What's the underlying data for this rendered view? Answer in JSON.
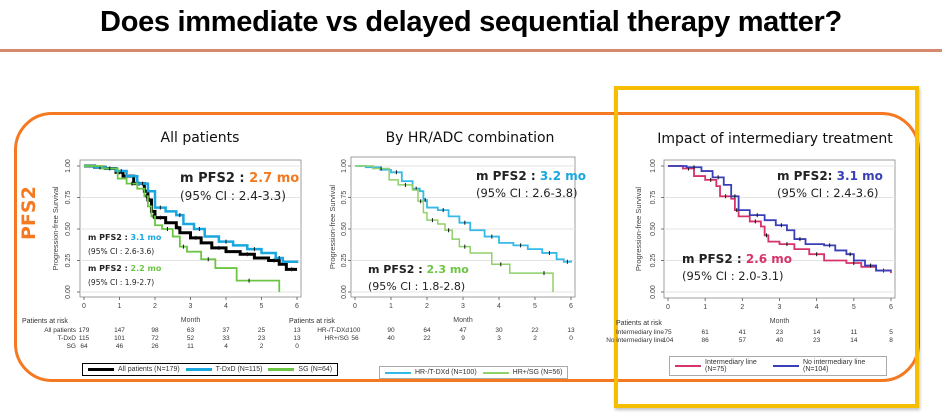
{
  "slide": {
    "title": "Does immediate vs delayed sequential therapy matter?",
    "side_label": "PFS2"
  },
  "colors": {
    "frame_orange": "#f47920",
    "highlight_yellow": "#f6be00",
    "all_patients": "#000000",
    "tdxd": "#1aa7e0",
    "sg": "#6cc644",
    "hr_tdxd": "#35b9e6",
    "hr_sg": "#8fd16a",
    "intermediary": "#d6336c",
    "no_intermediary": "#3a3fb8"
  },
  "chart_data": [
    {
      "type": "line",
      "title": "All patients",
      "xlabel": "Month",
      "ylabel": "Progression-free Survival",
      "xlim": [
        0,
        6
      ],
      "ylim": [
        0,
        1
      ],
      "xticks": [
        "0",
        "1",
        "2",
        "3",
        "4",
        "5",
        "6"
      ],
      "yticks": [
        "0.00",
        "0.25",
        "0.50",
        "0.75",
        "1.00"
      ],
      "grid": true,
      "annotations": [
        {
          "label": "m PFS2 : ",
          "value": "2.7 mo",
          "ci": "(95% CI : 2.4-3.3)",
          "color": "#f47920"
        },
        {
          "label": "m PFS2 : ",
          "value": "3.1 mo",
          "ci": "(95% CI : 2.6-3.6)",
          "color": "#1aa7e0"
        },
        {
          "label": "m PFS2 : ",
          "value": "2.2 mo",
          "ci": "(95% CI : 1.9-2.7)",
          "color": "#6cc644"
        }
      ],
      "series": [
        {
          "name": "All patients (N=179)",
          "color": "#000000",
          "x": [
            0,
            0.3,
            0.6,
            0.9,
            1.1,
            1.4,
            1.7,
            1.8,
            1.9,
            2.0,
            2.3,
            2.6,
            2.7,
            3.0,
            3.3,
            3.6,
            4.0,
            4.4,
            4.8,
            5.2,
            5.5,
            5.7,
            6.0
          ],
          "y": [
            1.0,
            0.99,
            0.98,
            0.95,
            0.92,
            0.86,
            0.8,
            0.73,
            0.64,
            0.59,
            0.55,
            0.51,
            0.47,
            0.43,
            0.39,
            0.35,
            0.32,
            0.3,
            0.27,
            0.25,
            0.22,
            0.18,
            0.18
          ]
        },
        {
          "name": "T-DxD (N=115)",
          "color": "#1aa7e0",
          "x": [
            0,
            0.3,
            0.6,
            0.9,
            1.2,
            1.5,
            1.8,
            2.0,
            2.3,
            2.6,
            2.8,
            3.1,
            3.4,
            3.8,
            4.2,
            4.6,
            5.0,
            5.4,
            5.6,
            6.0
          ],
          "y": [
            1.0,
            0.99,
            0.98,
            0.96,
            0.92,
            0.86,
            0.8,
            0.67,
            0.64,
            0.61,
            0.54,
            0.5,
            0.44,
            0.4,
            0.37,
            0.34,
            0.31,
            0.27,
            0.24,
            0.23
          ]
        },
        {
          "name": "SG (N=64)",
          "color": "#6cc644",
          "x": [
            0,
            0.5,
            0.95,
            1.2,
            1.5,
            1.7,
            1.8,
            1.9,
            2.0,
            2.2,
            2.5,
            2.7,
            2.9,
            3.3,
            3.7,
            4.3,
            5.0,
            5.5
          ],
          "y": [
            1.0,
            0.98,
            0.9,
            0.86,
            0.82,
            0.76,
            0.68,
            0.6,
            0.53,
            0.5,
            0.44,
            0.36,
            0.32,
            0.26,
            0.19,
            0.09,
            0.09,
            0.0
          ]
        }
      ],
      "risk_table": {
        "header": "Patients at risk",
        "rows": [
          {
            "label": "All patients",
            "values": [
              179,
              147,
              98,
              63,
              37,
              25,
              13
            ]
          },
          {
            "label": "T-DxD",
            "values": [
              115,
              101,
              72,
              52,
              33,
              23,
              13
            ]
          },
          {
            "label": "SG",
            "values": [
              64,
              46,
              26,
              11,
              4,
              2,
              0
            ]
          }
        ]
      },
      "legend": [
        "All patients (N=179)",
        "T-DxD (N=115)",
        "SG (N=64)"
      ]
    },
    {
      "type": "line",
      "title": "By HR/ADC combination",
      "xlabel": "Month",
      "ylabel": "Progression-free Survival",
      "xlim": [
        0,
        6
      ],
      "ylim": [
        0,
        1
      ],
      "xticks": [
        "0",
        "1",
        "2",
        "3",
        "4",
        "5",
        "6"
      ],
      "yticks": [
        "0.00",
        "0.25",
        "0.50",
        "0.75",
        "1.00"
      ],
      "grid": true,
      "annotations": [
        {
          "label": "m PFS2 : ",
          "value": "3.2 mo",
          "ci": "(95% CI : 2.6-3.8)",
          "color": "#1aa7e0"
        },
        {
          "label": "m PFS2 : ",
          "value": "2.3 mo",
          "ci": "(95% CI : 1.8-2.8)",
          "color": "#6cc644"
        }
      ],
      "series": [
        {
          "name": "HR-/T-DXd (N=100)",
          "color": "#35b9e6",
          "x": [
            0,
            0.3,
            0.7,
            1.0,
            1.3,
            1.6,
            1.8,
            1.9,
            2.0,
            2.3,
            2.6,
            2.9,
            3.2,
            3.6,
            4.0,
            4.4,
            4.8,
            5.2,
            5.6,
            5.8,
            6.0
          ],
          "y": [
            1.0,
            0.99,
            0.97,
            0.95,
            0.88,
            0.82,
            0.8,
            0.73,
            0.67,
            0.65,
            0.6,
            0.55,
            0.49,
            0.44,
            0.39,
            0.37,
            0.34,
            0.31,
            0.26,
            0.24,
            0.25
          ]
        },
        {
          "name": "HR+/SG (N=56)",
          "color": "#8fd16a",
          "x": [
            0,
            0.5,
            0.95,
            1.2,
            1.6,
            1.75,
            1.9,
            2.0,
            2.3,
            2.5,
            2.7,
            2.9,
            3.2,
            3.8,
            4.3,
            5.0,
            5.5
          ],
          "y": [
            1.0,
            0.98,
            0.89,
            0.85,
            0.81,
            0.72,
            0.63,
            0.57,
            0.54,
            0.49,
            0.42,
            0.36,
            0.31,
            0.22,
            0.15,
            0.15,
            0.0
          ]
        }
      ],
      "risk_table": {
        "header": "Patients at risk",
        "rows": [
          {
            "label": "HR-/T-DXd",
            "values": [
              100,
              90,
              64,
              47,
              30,
              22,
              13
            ]
          },
          {
            "label": "HR+/SG",
            "values": [
              56,
              40,
              22,
              9,
              3,
              2,
              0
            ]
          }
        ]
      },
      "legend": [
        "HR-/T-DXd (N=100)",
        "HR+/SG (N=56)"
      ]
    },
    {
      "type": "line",
      "title": "Impact of intermediary treatment",
      "xlabel": "Month",
      "ylabel": "Progression-free Survival",
      "xlim": [
        0,
        6
      ],
      "ylim": [
        0,
        1
      ],
      "xticks": [
        "0",
        "1",
        "2",
        "3",
        "4",
        "5",
        "6"
      ],
      "yticks": [
        "0.00",
        "0.25",
        "0.50",
        "0.75",
        "1.00"
      ],
      "grid": true,
      "annotations": [
        {
          "label": "m PFS2: ",
          "value": "3.1 mo",
          "ci": "(95% CI : 2.4-3.6)",
          "color": "#3a3fb8"
        },
        {
          "label": "m PFS2 : ",
          "value": "2.6 mo",
          "ci": "(95% CI : 2.0-3.1)",
          "color": "#d6336c"
        }
      ],
      "series": [
        {
          "name": "Intermediary line (N=75)",
          "color": "#d6336c",
          "x": [
            0,
            0.4,
            0.7,
            1.0,
            1.3,
            1.4,
            1.7,
            1.8,
            1.9,
            2.2,
            2.5,
            2.6,
            2.7,
            3.0,
            3.4,
            3.8,
            4.2,
            4.8,
            5.2,
            5.6,
            6.0
          ],
          "y": [
            1.0,
            0.98,
            0.92,
            0.89,
            0.84,
            0.76,
            0.74,
            0.65,
            0.6,
            0.56,
            0.52,
            0.45,
            0.4,
            0.38,
            0.34,
            0.3,
            0.25,
            0.23,
            0.2,
            0.17,
            0.15
          ]
        },
        {
          "name": "No intermediary line (N=104)",
          "color": "#3a3fb8",
          "x": [
            0,
            0.5,
            0.9,
            1.2,
            1.5,
            1.7,
            1.9,
            2.2,
            2.6,
            2.9,
            3.2,
            3.4,
            3.7,
            4.2,
            4.5,
            4.8,
            5.0,
            5.3,
            5.6,
            6.0
          ],
          "y": [
            1.0,
            0.99,
            0.96,
            0.91,
            0.85,
            0.76,
            0.65,
            0.61,
            0.57,
            0.53,
            0.49,
            0.42,
            0.38,
            0.37,
            0.33,
            0.3,
            0.25,
            0.21,
            0.17,
            0.17
          ]
        }
      ],
      "risk_table": {
        "header": "Patients at risk",
        "rows": [
          {
            "label": "Intermediary line",
            "values": [
              75,
              61,
              41,
              23,
              14,
              11,
              5
            ]
          },
          {
            "label": "No intermediary line",
            "values": [
              104,
              86,
              57,
              40,
              23,
              14,
              8
            ]
          }
        ]
      },
      "legend": [
        "Intermediary line (N=75)",
        "No intermediary line (N=104)"
      ]
    }
  ]
}
